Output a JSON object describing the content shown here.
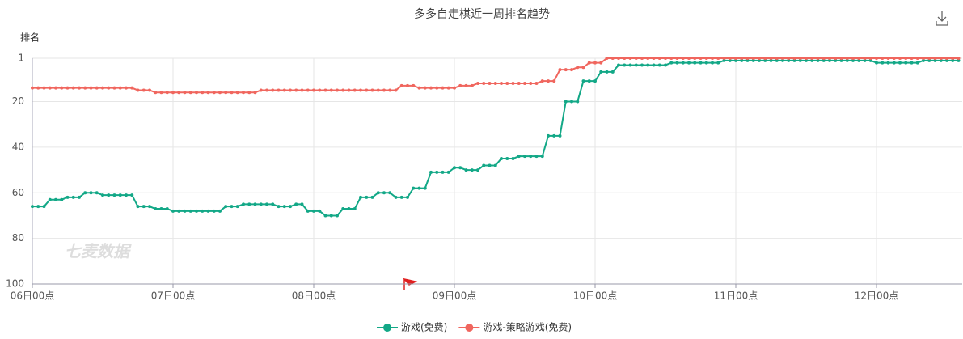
{
  "chart_data": {
    "type": "line",
    "title": "多多自走棋近一周排名趋势",
    "y_label": "排名",
    "watermark": "七麦数据",
    "categories": [
      "06日00点",
      null,
      null,
      null,
      null,
      null,
      null,
      null,
      null,
      null,
      null,
      null,
      null,
      null,
      null,
      null,
      null,
      null,
      null,
      null,
      null,
      null,
      null,
      null,
      "07日00点",
      null,
      null,
      null,
      null,
      null,
      null,
      null,
      null,
      null,
      null,
      null,
      null,
      null,
      null,
      null,
      null,
      null,
      null,
      null,
      null,
      null,
      null,
      null,
      "08日00点",
      null,
      null,
      null,
      null,
      null,
      null,
      null,
      null,
      null,
      null,
      null,
      null,
      null,
      null,
      null,
      null,
      null,
      null,
      null,
      null,
      null,
      null,
      null,
      "09日00点",
      null,
      null,
      null,
      null,
      null,
      null,
      null,
      null,
      null,
      null,
      null,
      null,
      null,
      null,
      null,
      null,
      null,
      null,
      null,
      null,
      null,
      null,
      null,
      "10日00点",
      null,
      null,
      null,
      null,
      null,
      null,
      null,
      null,
      null,
      null,
      null,
      null,
      null,
      null,
      null,
      null,
      null,
      null,
      null,
      null,
      null,
      null,
      null,
      "11日00点",
      null,
      null,
      null,
      null,
      null,
      null,
      null,
      null,
      null,
      null,
      null,
      null,
      null,
      null,
      null,
      null,
      null,
      null,
      null,
      null,
      null,
      null,
      null,
      "12日00点",
      null,
      null,
      null,
      null,
      null,
      null,
      null,
      null,
      null,
      null,
      null,
      null,
      null,
      null
    ],
    "series": [
      {
        "name": "游戏(免费)",
        "color": "#13a887",
        "values": [
          66,
          66,
          66,
          63,
          63,
          63,
          62,
          62,
          62,
          60,
          60,
          60,
          61,
          61,
          61,
          61,
          61,
          61,
          66,
          66,
          66,
          67,
          67,
          67,
          68,
          68,
          68,
          68,
          68,
          68,
          68,
          68,
          68,
          66,
          66,
          66,
          65,
          65,
          65,
          65,
          65,
          65,
          66,
          66,
          66,
          65,
          65,
          68,
          68,
          68,
          70,
          70,
          70,
          67,
          67,
          67,
          62,
          62,
          62,
          60,
          60,
          60,
          62,
          62,
          62,
          58,
          58,
          58,
          51,
          51,
          51,
          51,
          49,
          49,
          50,
          50,
          50,
          48,
          48,
          48,
          45,
          45,
          45,
          44,
          44,
          44,
          44,
          44,
          35,
          35,
          35,
          20,
          20,
          20,
          11,
          11,
          11,
          7,
          7,
          7,
          4,
          4,
          4,
          4,
          4,
          4,
          4,
          4,
          4,
          3,
          3,
          3,
          3,
          3,
          3,
          3,
          3,
          3,
          2,
          2,
          2,
          2,
          2,
          2,
          2,
          2,
          2,
          2,
          2,
          2,
          2,
          2,
          2,
          2,
          2,
          2,
          2,
          2,
          2,
          2,
          2,
          2,
          2,
          2,
          3,
          3,
          3,
          3,
          3,
          3,
          3,
          3,
          2,
          2,
          2,
          2,
          2,
          2,
          2
        ]
      },
      {
        "name": "游戏-策略游戏(免费)",
        "color": "#f0665e",
        "values": [
          14,
          14,
          14,
          14,
          14,
          14,
          14,
          14,
          14,
          14,
          14,
          14,
          14,
          14,
          14,
          14,
          14,
          14,
          15,
          15,
          15,
          16,
          16,
          16,
          16,
          16,
          16,
          16,
          16,
          16,
          16,
          16,
          16,
          16,
          16,
          16,
          16,
          16,
          16,
          15,
          15,
          15,
          15,
          15,
          15,
          15,
          15,
          15,
          15,
          15,
          15,
          15,
          15,
          15,
          15,
          15,
          15,
          15,
          15,
          15,
          15,
          15,
          15,
          13,
          13,
          13,
          14,
          14,
          14,
          14,
          14,
          14,
          14,
          13,
          13,
          13,
          12,
          12,
          12,
          12,
          12,
          12,
          12,
          12,
          12,
          12,
          12,
          11,
          11,
          11,
          6,
          6,
          6,
          5,
          5,
          3,
          3,
          3,
          1,
          1,
          1,
          1,
          1,
          1,
          1,
          1,
          1,
          1,
          1,
          1,
          1,
          1,
          1,
          1,
          1,
          1,
          1,
          1,
          1,
          1,
          1,
          1,
          1,
          1,
          1,
          1,
          1,
          1,
          1,
          1,
          1,
          1,
          1,
          1,
          1,
          1,
          1,
          1,
          1,
          1,
          1,
          1,
          1,
          1,
          1,
          1,
          1,
          1,
          1,
          1,
          1,
          1,
          1,
          1,
          1,
          1,
          1,
          1,
          1
        ]
      }
    ],
    "ylim": [
      1,
      100
    ],
    "y_inverted": true,
    "yticks": [
      1,
      20,
      40,
      60,
      80,
      100
    ],
    "grid": true
  }
}
